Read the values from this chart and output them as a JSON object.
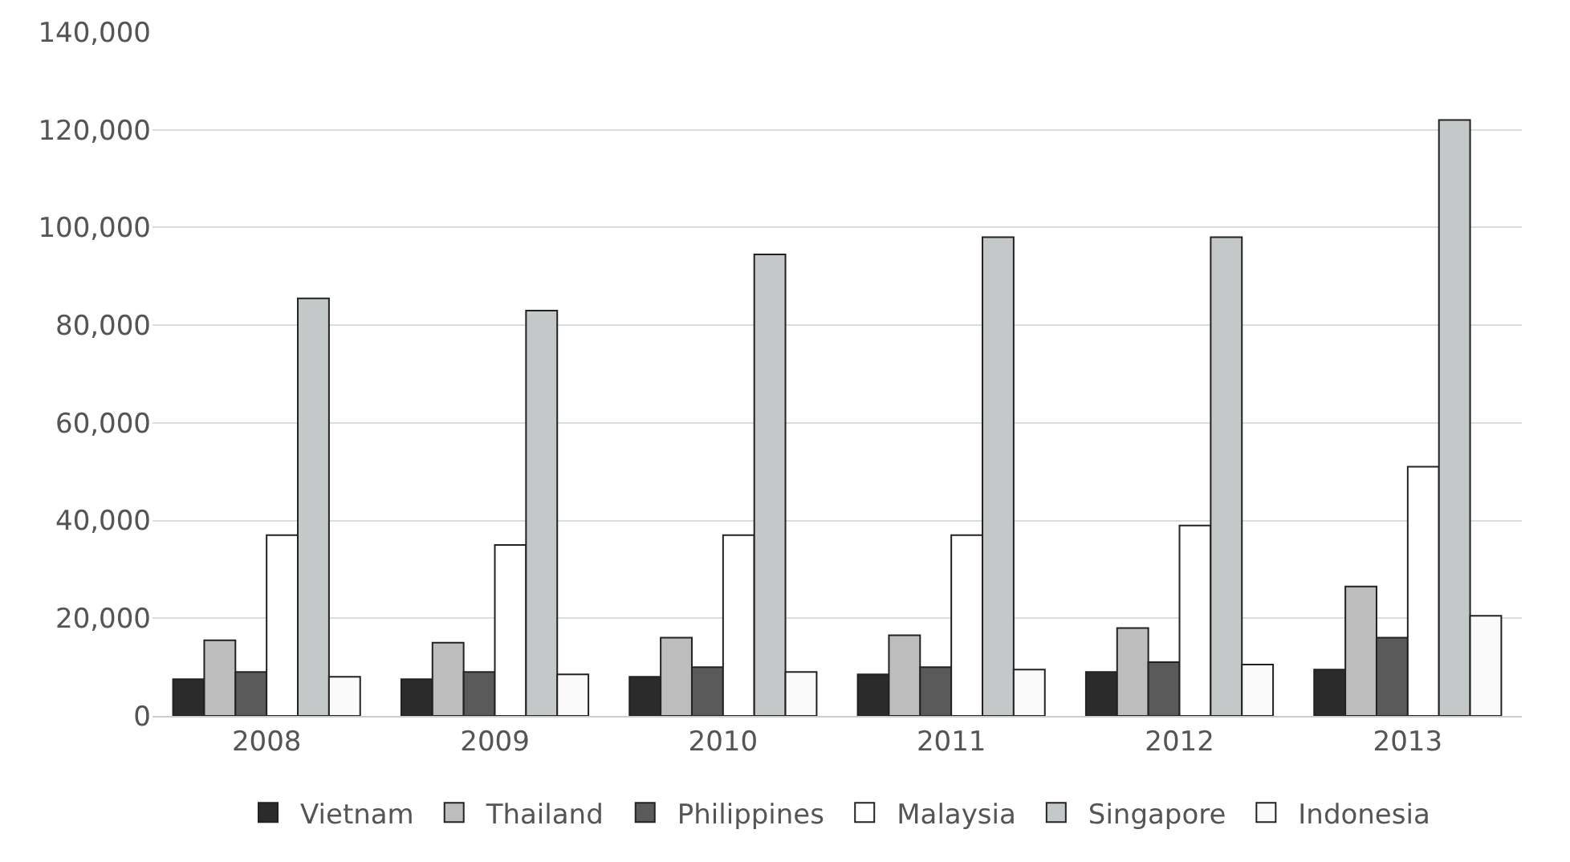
{
  "chart_data": {
    "type": "bar",
    "categories": [
      "2008",
      "2009",
      "2010",
      "2011",
      "2012",
      "2013"
    ],
    "series": [
      {
        "name": "Vietnam",
        "color": "#2b2b2b",
        "values": [
          7500,
          7500,
          8000,
          8500,
          9000,
          9500
        ]
      },
      {
        "name": "Thailand",
        "color": "#bdbdbd",
        "values": [
          15500,
          15000,
          16000,
          16500,
          18000,
          26500
        ]
      },
      {
        "name": "Philippines",
        "color": "#5a5a5a",
        "values": [
          9000,
          9000,
          10000,
          10000,
          11000,
          16000
        ]
      },
      {
        "name": "Malaysia",
        "color": "#ffffff",
        "values": [
          37000,
          35000,
          37000,
          37000,
          39000,
          51000
        ]
      },
      {
        "name": "Singapore",
        "color": "#c4c8c8",
        "values": [
          85500,
          83000,
          94500,
          98000,
          98000,
          122000
        ]
      },
      {
        "name": "Indonesia",
        "color": "#fafafa",
        "values": [
          8000,
          8500,
          9000,
          9500,
          10500,
          20500
        ]
      }
    ],
    "ylim": [
      0,
      140000
    ],
    "yticks": [
      {
        "value": 0,
        "label": "0"
      },
      {
        "value": 20000,
        "label": "20,000"
      },
      {
        "value": 40000,
        "label": "40,000"
      },
      {
        "value": 60000,
        "label": "60,000"
      },
      {
        "value": 80000,
        "label": "80,000"
      },
      {
        "value": 100000,
        "label": "100,000"
      },
      {
        "value": 120000,
        "label": "120,000"
      },
      {
        "value": 140000,
        "label": "140,000"
      }
    ],
    "grid": "y",
    "legend": "bottom"
  }
}
